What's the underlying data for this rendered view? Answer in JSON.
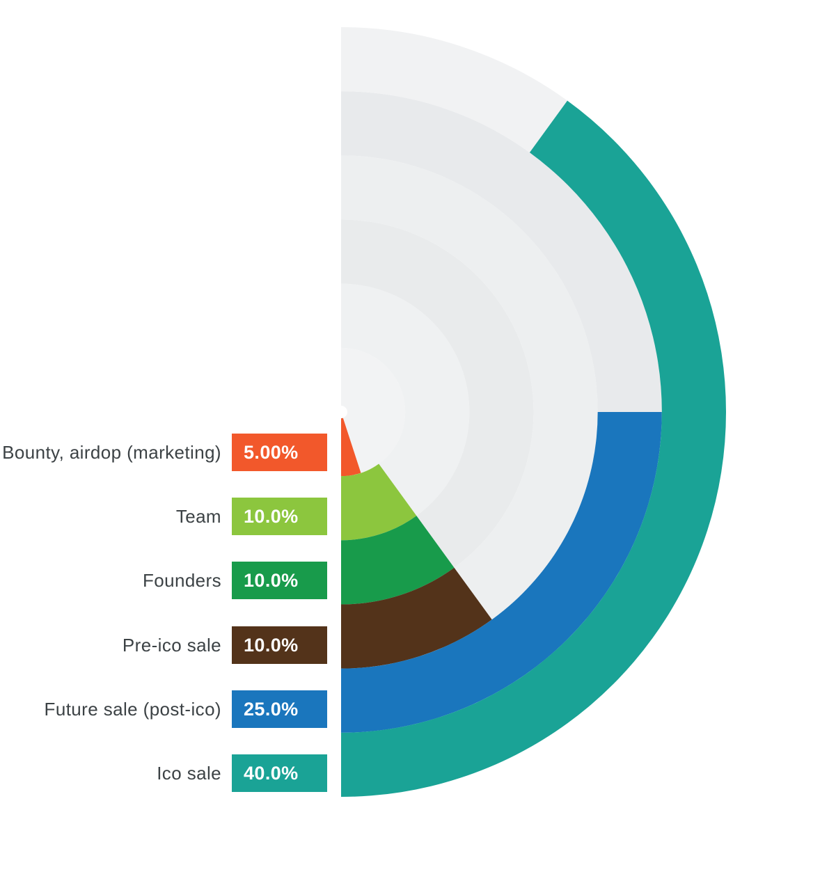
{
  "chart_data": {
    "type": "radial-bar",
    "title": "",
    "categories": [
      "Bounty, airdop (marketing)",
      "Team",
      "Founders",
      "Pre-ico sale",
      "Future sale (post-ico)",
      "Ico sale"
    ],
    "values": [
      5.0,
      10.0,
      10.0,
      10.0,
      25.0,
      40.0
    ],
    "value_labels": [
      "5.00%",
      "10.0%",
      "10.0%",
      "10.0%",
      "25.0%",
      "40.0%"
    ],
    "colors": [
      "#f2582b",
      "#8cc63e",
      "#189b4b",
      "#53331a",
      "#1a76bd",
      "#1aa396"
    ],
    "track_colors": [
      "#f2f3f4",
      "#eff1f2",
      "#e9ebec",
      "#edeff0",
      "#e8eaec",
      "#f1f2f3"
    ],
    "layout": {
      "full_circle_pct": 100,
      "arc_end_deg": 180,
      "direction": "clockwise",
      "ring_order": "innermost-to-outermost",
      "legend_position": "left",
      "background": "#ffffff",
      "value_text_color": "#ffffff",
      "label_text_color": "#3c4245"
    }
  }
}
